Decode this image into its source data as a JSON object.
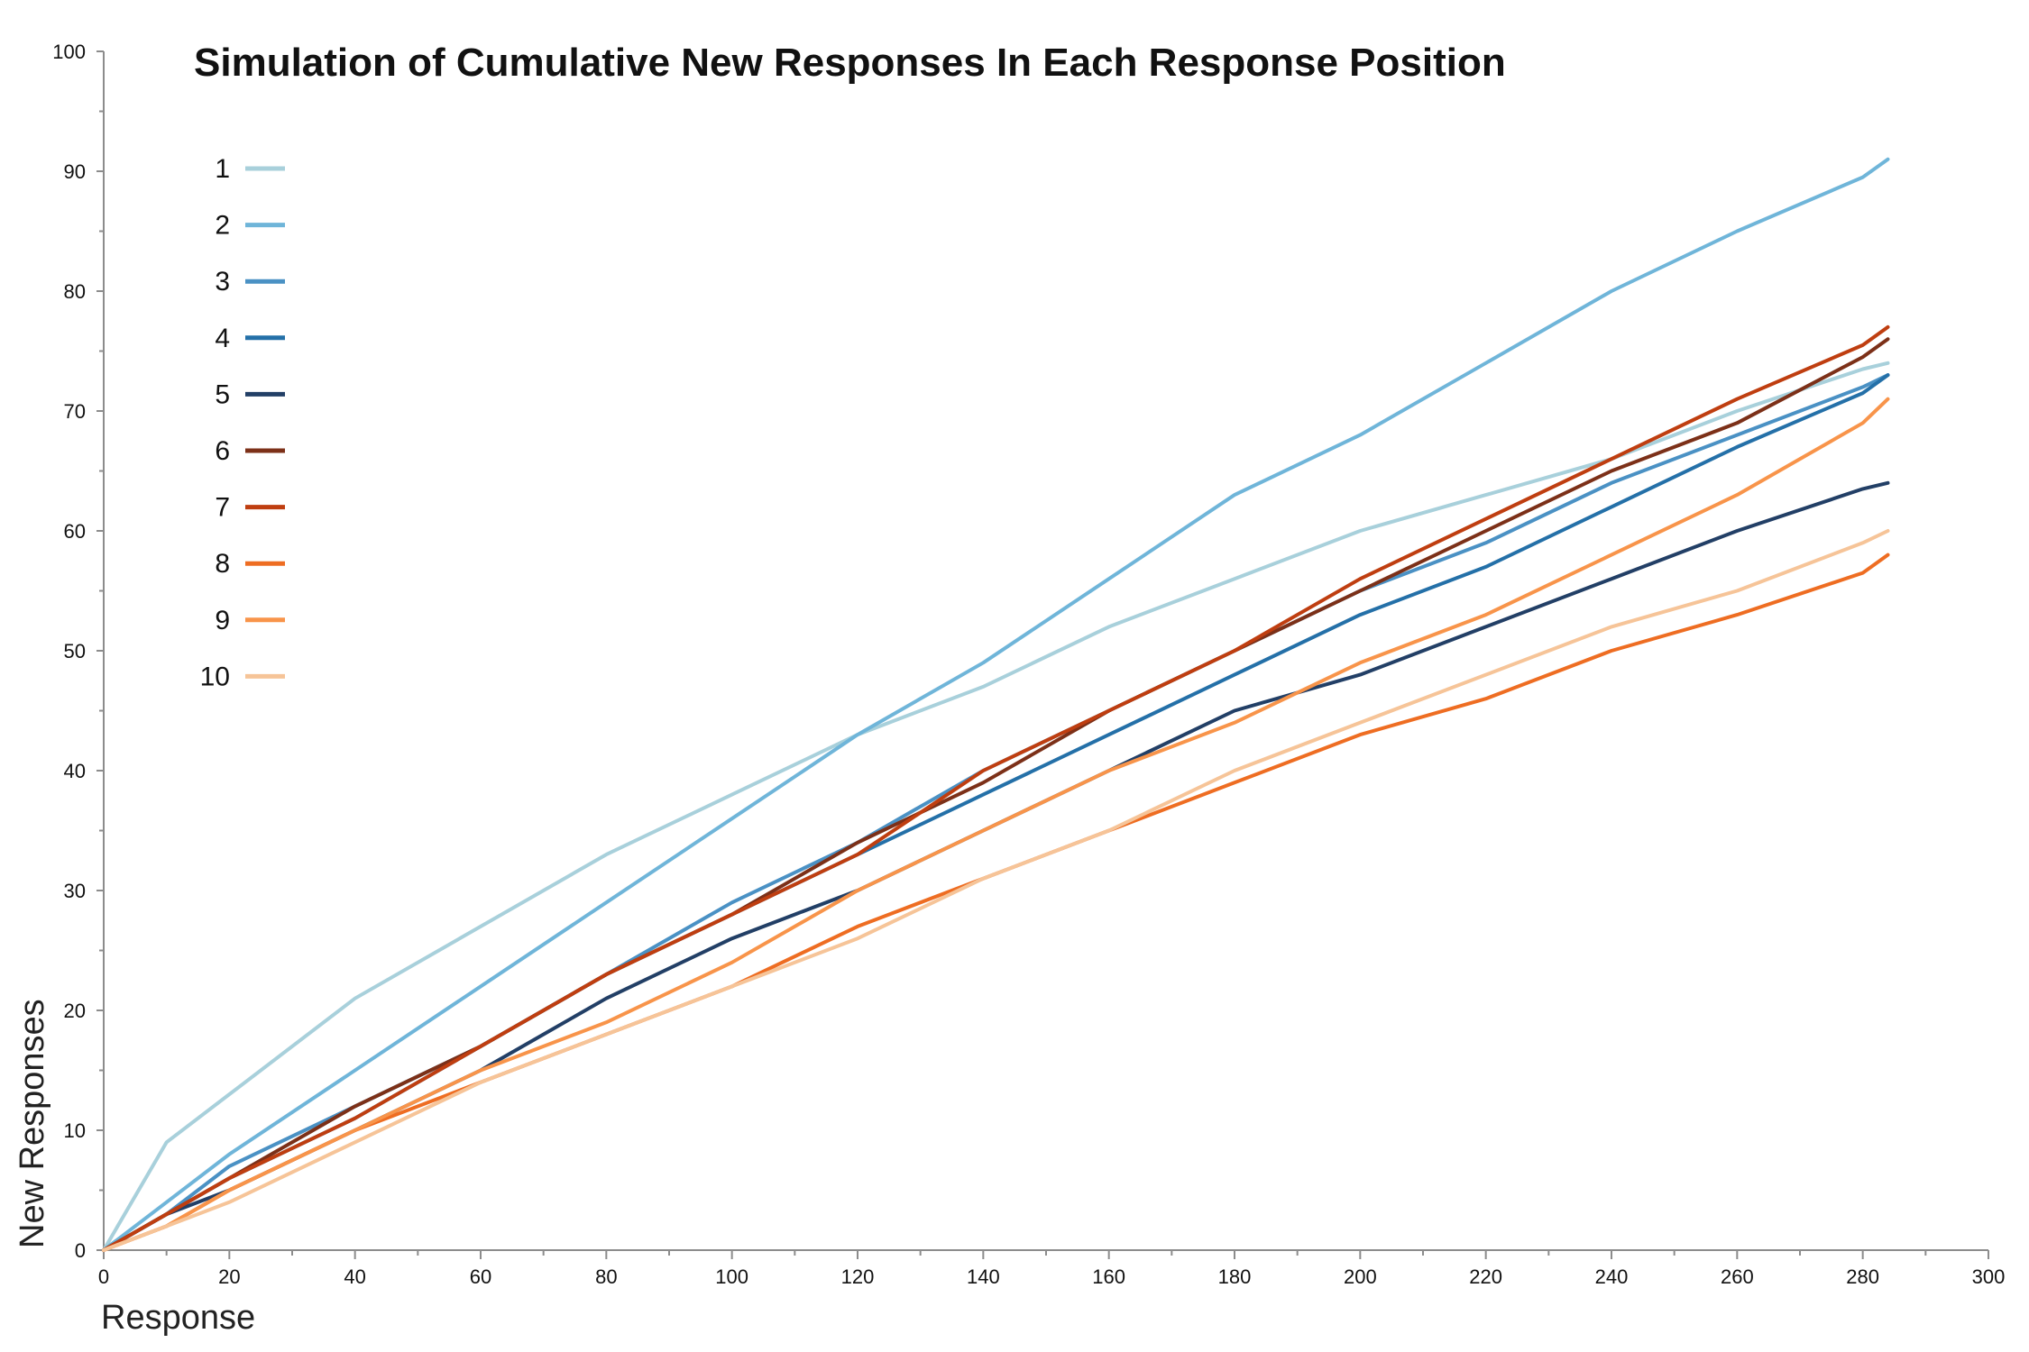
{
  "chart_data": {
    "type": "line",
    "title": "Simulation of Cumulative New Responses In Each Response Position",
    "xlabel": "Response",
    "ylabel": "New Responses",
    "xlim": [
      0,
      300
    ],
    "ylim": [
      0,
      100
    ],
    "xticks": [
      0,
      20,
      40,
      60,
      80,
      100,
      120,
      140,
      160,
      180,
      200,
      220,
      240,
      260,
      280,
      300
    ],
    "yticks": [
      0,
      10,
      20,
      30,
      40,
      50,
      60,
      70,
      80,
      90,
      100
    ],
    "grid": false,
    "legend_position": "top-left",
    "series": [
      {
        "name": "1",
        "color": "#a8d0db",
        "x": [
          0,
          10,
          20,
          40,
          60,
          80,
          100,
          120,
          140,
          160,
          180,
          200,
          220,
          240,
          260,
          280,
          284
        ],
        "y": [
          0,
          9,
          13,
          21,
          27,
          33,
          38,
          43,
          47,
          52,
          56,
          60,
          63,
          66,
          70,
          73.5,
          74
        ]
      },
      {
        "name": "2",
        "color": "#6fb5d9",
        "x": [
          0,
          10,
          20,
          40,
          60,
          80,
          100,
          120,
          140,
          160,
          180,
          200,
          220,
          240,
          260,
          280,
          284
        ],
        "y": [
          0,
          4,
          8,
          15,
          22,
          29,
          36,
          43,
          49,
          56,
          63,
          68,
          74,
          80,
          85,
          89.5,
          91
        ]
      },
      {
        "name": "3",
        "color": "#4a91c4",
        "x": [
          0,
          10,
          20,
          40,
          60,
          80,
          100,
          120,
          140,
          160,
          180,
          200,
          220,
          240,
          260,
          280,
          284
        ],
        "y": [
          0,
          3,
          7,
          12,
          17,
          23,
          29,
          34,
          40,
          45,
          50,
          55,
          59,
          64,
          68,
          72,
          73
        ]
      },
      {
        "name": "4",
        "color": "#2470a8",
        "x": [
          0,
          10,
          20,
          40,
          60,
          80,
          100,
          120,
          140,
          160,
          180,
          200,
          220,
          240,
          260,
          280,
          284
        ],
        "y": [
          0,
          3,
          6,
          11,
          17,
          23,
          28,
          33,
          38,
          43,
          48,
          53,
          57,
          62,
          67,
          71.5,
          73
        ]
      },
      {
        "name": "5",
        "color": "#223f66",
        "x": [
          0,
          10,
          20,
          40,
          60,
          80,
          100,
          120,
          140,
          160,
          180,
          200,
          220,
          240,
          260,
          280,
          284
        ],
        "y": [
          0,
          3,
          5,
          10,
          15,
          21,
          26,
          30,
          35,
          40,
          45,
          48,
          52,
          56,
          60,
          63.5,
          64
        ]
      },
      {
        "name": "6",
        "color": "#7c3018",
        "x": [
          0,
          10,
          20,
          40,
          60,
          80,
          100,
          120,
          140,
          160,
          180,
          200,
          220,
          240,
          260,
          280,
          284
        ],
        "y": [
          0,
          3,
          6,
          12,
          17,
          23,
          28,
          34,
          39,
          45,
          50,
          55,
          60,
          65,
          69,
          74.5,
          76
        ]
      },
      {
        "name": "7",
        "color": "#bf3e10",
        "x": [
          0,
          10,
          20,
          40,
          60,
          80,
          100,
          120,
          140,
          160,
          180,
          200,
          220,
          240,
          260,
          280,
          284
        ],
        "y": [
          0,
          3,
          6,
          11,
          17,
          23,
          28,
          33,
          40,
          45,
          50,
          56,
          61,
          66,
          71,
          75.5,
          77
        ]
      },
      {
        "name": "8",
        "color": "#ee6d22",
        "x": [
          0,
          10,
          20,
          40,
          60,
          80,
          100,
          120,
          140,
          160,
          180,
          200,
          220,
          240,
          260,
          280,
          284
        ],
        "y": [
          0,
          2,
          5,
          10,
          14,
          18,
          22,
          27,
          31,
          35,
          39,
          43,
          46,
          50,
          53,
          56.5,
          58
        ]
      },
      {
        "name": "9",
        "color": "#f8944a",
        "x": [
          0,
          10,
          20,
          40,
          60,
          80,
          100,
          120,
          140,
          160,
          180,
          200,
          220,
          240,
          260,
          280,
          284
        ],
        "y": [
          0,
          2,
          5,
          10,
          15,
          19,
          24,
          30,
          35,
          40,
          44,
          49,
          53,
          58,
          63,
          69,
          71
        ]
      },
      {
        "name": "10",
        "color": "#f6c498",
        "x": [
          0,
          10,
          20,
          40,
          60,
          80,
          100,
          120,
          140,
          160,
          180,
          200,
          220,
          240,
          260,
          280,
          284
        ],
        "y": [
          0,
          2,
          4,
          9,
          14,
          18,
          22,
          26,
          31,
          35,
          40,
          44,
          48,
          52,
          55,
          59,
          60
        ]
      }
    ]
  }
}
